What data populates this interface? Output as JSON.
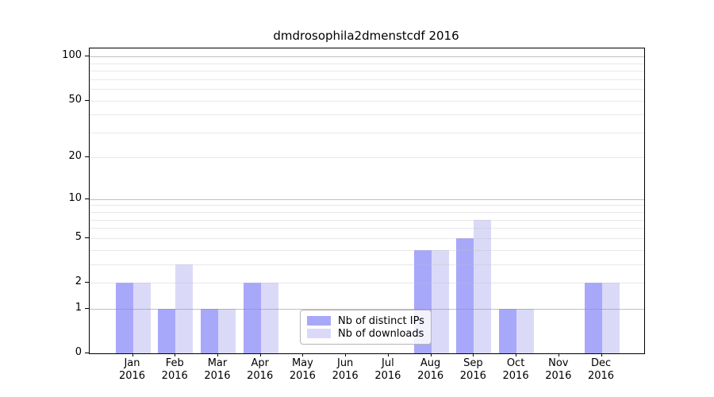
{
  "chart_data": {
    "type": "bar",
    "title": "dmdrosophila2dmenstcdf 2016",
    "categories": [
      "Jan",
      "Feb",
      "Mar",
      "Apr",
      "May",
      "Jun",
      "Jul",
      "Aug",
      "Sep",
      "Oct",
      "Nov",
      "Dec"
    ],
    "category_year": "2016",
    "series": [
      {
        "name": "Nb of distinct IPs",
        "color": "#a8a8fa",
        "values": [
          2,
          1,
          1,
          2,
          0,
          0,
          0,
          4,
          5,
          1,
          0,
          2
        ]
      },
      {
        "name": "Nb of downloads",
        "color": "#dadaf8",
        "values": [
          2,
          3,
          1,
          2,
          0,
          0,
          0,
          4,
          7,
          1,
          0,
          2
        ]
      }
    ],
    "yscale": "log1p",
    "yticks": [
      0,
      1,
      2,
      5,
      10,
      20,
      50,
      100
    ],
    "gridlines": {
      "major": [
        1,
        10,
        100
      ],
      "minor": [
        2,
        3,
        4,
        5,
        6,
        7,
        8,
        9,
        20,
        30,
        40,
        50,
        60,
        70,
        80,
        90
      ]
    },
    "ylim": [
      0,
      113
    ],
    "legend_position": "lower-center",
    "grid": "on",
    "colors": {
      "spine": "#000000",
      "major_grid": "#b0b0b0",
      "minor_grid": "#e7e7e7",
      "legend_border": "#b4b4b4"
    }
  }
}
